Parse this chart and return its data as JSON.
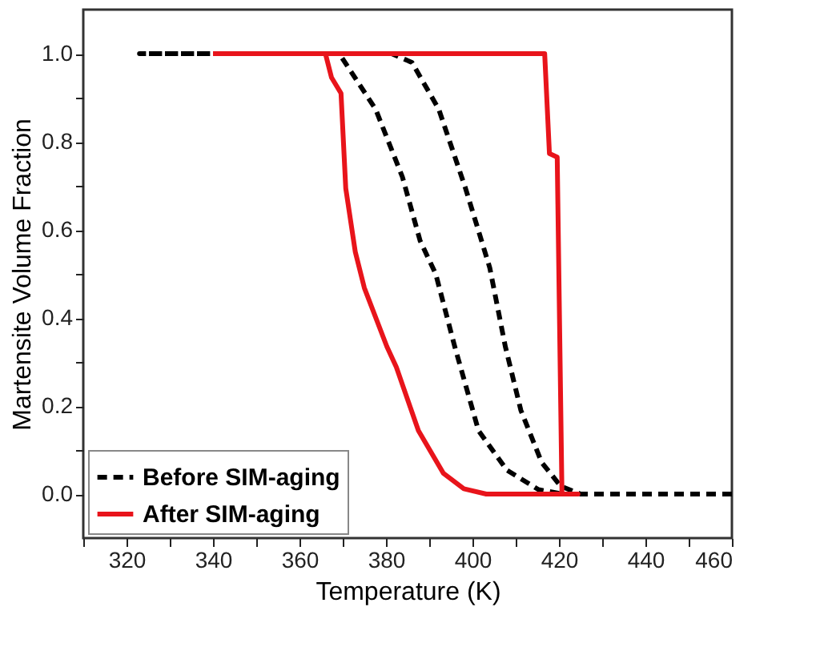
{
  "chart_data": {
    "type": "line",
    "xlabel": "Temperature (K)",
    "ylabel": "Martensite Volume Fraction",
    "xlim": [
      310,
      460
    ],
    "ylim": [
      -0.1,
      1.1
    ],
    "xticks": [
      {
        "value": 310,
        "label": null
      },
      320,
      {
        "value": 330,
        "label": null
      },
      340,
      {
        "value": 350,
        "label": null
      },
      360,
      {
        "value": 370,
        "label": null
      },
      380,
      {
        "value": 390,
        "label": null
      },
      400,
      {
        "value": 410,
        "label": null
      },
      420,
      {
        "value": 430,
        "label": null
      },
      440,
      {
        "value": 450,
        "label": null
      },
      460
    ],
    "yticks": [
      {
        "value": 0,
        "label": "0.0"
      },
      {
        "value": 0.1,
        "label": null
      },
      {
        "value": 0.2,
        "label": "0.2"
      },
      {
        "value": 0.3,
        "label": null
      },
      {
        "value": 0.4,
        "label": "0.4"
      },
      {
        "value": 0.5,
        "label": null
      },
      {
        "value": 0.6,
        "label": "0.6"
      },
      {
        "value": 0.7,
        "label": null
      },
      {
        "value": 0.8,
        "label": "0.8"
      },
      {
        "value": 0.9,
        "label": null
      },
      {
        "value": 1.0,
        "label": "1.0"
      }
    ],
    "grid": false,
    "legend": "bottom left",
    "marker": "none",
    "series": [
      {
        "name": "Before SIM-aging",
        "color": "#000000",
        "line_style": "dashed",
        "x": [
          460,
          425,
          420.4,
          416,
          411.2,
          407.6,
          404,
          398.4,
          392.2,
          386,
          381.3,
          323,
          369.2,
          377.6,
          383.8,
          387.9,
          391.5,
          395.9,
          401.4,
          408,
          415.3,
          421
        ],
        "values": [
          0,
          0,
          0.018,
          0.072,
          0.19,
          0.335,
          0.514,
          0.694,
          0.874,
          0.98,
          1.0,
          1.0,
          1.0,
          0.874,
          0.72,
          0.575,
          0.5,
          0.335,
          0.144,
          0.054,
          0.01,
          0
        ]
      },
      {
        "name": "After SIM-aging",
        "color": "#e8141b",
        "line_style": "solid",
        "x": [
          340,
          416.7,
          417.8,
          419.6,
          420.7,
          424.4,
          403.2,
          398,
          393.3,
          387.5,
          382.4,
          380.2,
          375,
          372.9,
          370.7,
          369.6,
          367.4,
          366
        ],
        "values": [
          1.0,
          1.0,
          0.773,
          0.765,
          0,
          0,
          0,
          0.012,
          0.047,
          0.144,
          0.288,
          0.335,
          0.468,
          0.55,
          0.694,
          0.91,
          0.946,
          1.0
        ]
      }
    ]
  }
}
